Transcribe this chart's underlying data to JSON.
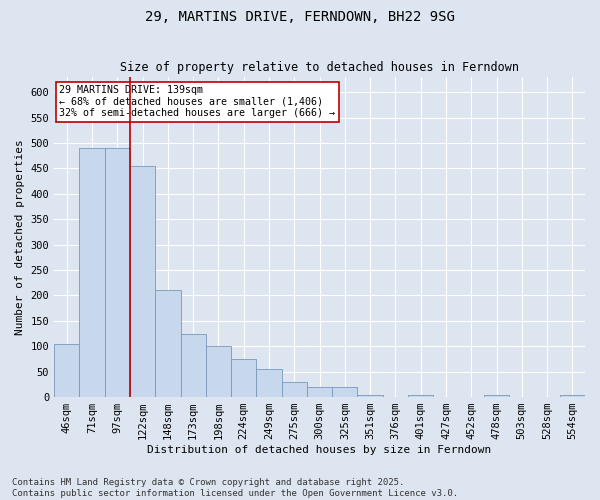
{
  "title": "29, MARTINS DRIVE, FERNDOWN, BH22 9SG",
  "subtitle": "Size of property relative to detached houses in Ferndown",
  "xlabel": "Distribution of detached houses by size in Ferndown",
  "ylabel": "Number of detached properties",
  "footer1": "Contains HM Land Registry data © Crown copyright and database right 2025.",
  "footer2": "Contains public sector information licensed under the Open Government Licence v3.0.",
  "categories": [
    "46sqm",
    "71sqm",
    "97sqm",
    "122sqm",
    "148sqm",
    "173sqm",
    "198sqm",
    "224sqm",
    "249sqm",
    "275sqm",
    "300sqm",
    "325sqm",
    "351sqm",
    "376sqm",
    "401sqm",
    "427sqm",
    "452sqm",
    "478sqm",
    "503sqm",
    "528sqm",
    "554sqm"
  ],
  "values": [
    105,
    490,
    490,
    455,
    210,
    125,
    100,
    75,
    55,
    30,
    20,
    20,
    5,
    0,
    5,
    0,
    0,
    5,
    0,
    0,
    5
  ],
  "bar_color": "#c8d8ec",
  "bar_edge_color": "#7799bb",
  "vline_x_index": 2.5,
  "vline_color": "#bb0000",
  "annotation_text": "29 MARTINS DRIVE: 139sqm\n← 68% of detached houses are smaller (1,406)\n32% of semi-detached houses are larger (666) →",
  "annotation_box_color": "#ffffff",
  "annotation_box_edge": "#bb0000",
  "ylim": [
    0,
    630
  ],
  "yticks": [
    0,
    50,
    100,
    150,
    200,
    250,
    300,
    350,
    400,
    450,
    500,
    550,
    600
  ],
  "bg_color": "#dde5f0",
  "plot_bg_color": "#dde5f0",
  "grid_color": "#ffffff",
  "title_fontsize": 10,
  "axis_fontsize": 8,
  "tick_fontsize": 7.5,
  "footer_fontsize": 6.5
}
